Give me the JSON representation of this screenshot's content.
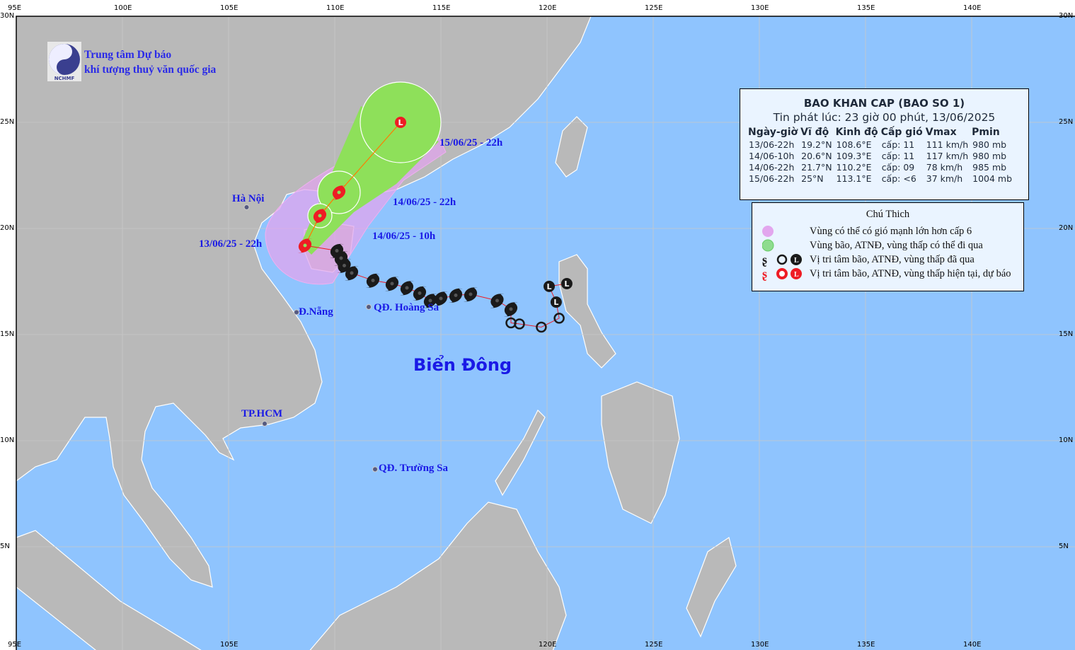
{
  "colors": {
    "sea": "#8fc4fe",
    "land": "#b9b9b9",
    "pink_zone": "#e2a6ee",
    "green_zone": "#8ee05a",
    "forecast": "#ee1c24",
    "past": "#1a1a1a",
    "label": "#1a1ae6"
  },
  "organization": {
    "line1": "Trung tâm Dự báo",
    "line2": "khí tượng thuỷ văn quốc gia",
    "logo_text": "NCHMF"
  },
  "axes": {
    "top_lon": [
      "95E",
      "100E",
      "105E",
      "110E",
      "115E",
      "120E",
      "125E",
      "130E",
      "135E",
      "140E"
    ],
    "bottom_lon": [
      "95E",
      "105E",
      "120E",
      "125E",
      "130E",
      "135E",
      "140E"
    ],
    "lat_left": [
      "30N",
      "25N",
      "20N",
      "15N",
      "10N",
      "5N"
    ],
    "lat_right": [
      "30N",
      "25N",
      "20N",
      "15N",
      "10N",
      "5N"
    ]
  },
  "places": {
    "hanoi": "Hà Nội",
    "danang": "Đ.Nẵng",
    "hoangsa": "QĐ. Hoàng Sa",
    "hcm": "TP.HCM",
    "truongsa": "QĐ. Trường Sa",
    "sea_name": "Biển Đông"
  },
  "time_labels": {
    "t0": "13/06/25 - 22h",
    "t1": "14/06/25 - 10h",
    "t2": "14/06/25 - 22h",
    "t3": "15/06/25 - 22h"
  },
  "bulletin": {
    "title": "BAO KHAN CAP (BAO SO 1)",
    "issued": "Tin phát lúc: 23 giờ 00 phút, 13/06/2025",
    "headers": [
      "Ngày-giờ",
      "Vĩ độ",
      "Kinh độ",
      "Cấp gió",
      "Vmax",
      "Pmin"
    ],
    "rows": [
      [
        "13/06-22h",
        "19.2°N",
        "108.6°E",
        "cấp: 11",
        "111 km/h",
        "980 mb"
      ],
      [
        "14/06-10h",
        "20.6°N",
        "109.3°E",
        "cấp: 11",
        "117 km/h",
        "980 mb"
      ],
      [
        "14/06-22h",
        "21.7°N",
        "110.2°E",
        "cấp: 09",
        "78 km/h",
        "985 mb"
      ],
      [
        "15/06-22h",
        "25°N",
        "113.1°E",
        "cấp: <6",
        "37 km/h",
        "1004 mb"
      ]
    ]
  },
  "legend": {
    "title": "Chú Thich",
    "items": [
      "Vùng có thể có gió mạnh lớn hơn cấp 6",
      "Vùng bão, ATNĐ, vùng thấp có thể đi qua",
      "Vị tri tâm bão, ATNĐ, vùng thấp đã qua",
      "Vị tri tâm bão, ATNĐ, vùng thấp hiện tại, dự báo"
    ]
  },
  "track": {
    "forecast": [
      {
        "lat": 19.2,
        "lon": 108.6,
        "type": "storm"
      },
      {
        "lat": 20.6,
        "lon": 109.3,
        "type": "storm"
      },
      {
        "lat": 21.7,
        "lon": 110.2,
        "type": "storm"
      },
      {
        "lat": 25.0,
        "lon": 113.1,
        "type": "low"
      }
    ],
    "past": [
      {
        "lat": 17.4,
        "lon": 120.93,
        "type": "low"
      },
      {
        "lat": 17.27,
        "lon": 120.1,
        "type": "low"
      },
      {
        "lat": 16.53,
        "lon": 120.43,
        "type": "low"
      },
      {
        "lat": 15.77,
        "lon": 120.57,
        "type": "depression"
      },
      {
        "lat": 15.35,
        "lon": 119.73,
        "type": "depression"
      },
      {
        "lat": 15.5,
        "lon": 118.7,
        "type": "depression"
      },
      {
        "lat": 15.55,
        "lon": 118.3,
        "type": "depression"
      },
      {
        "lat": 16.2,
        "lon": 118.3,
        "type": "storm"
      },
      {
        "lat": 16.6,
        "lon": 117.65,
        "type": "storm"
      },
      {
        "lat": 16.9,
        "lon": 116.4,
        "type": "storm"
      },
      {
        "lat": 16.85,
        "lon": 115.7,
        "type": "storm"
      },
      {
        "lat": 16.7,
        "lon": 115.0,
        "type": "storm"
      },
      {
        "lat": 16.6,
        "lon": 114.5,
        "type": "storm"
      },
      {
        "lat": 16.95,
        "lon": 114.0,
        "type": "storm"
      },
      {
        "lat": 17.2,
        "lon": 113.4,
        "type": "storm"
      },
      {
        "lat": 17.4,
        "lon": 112.7,
        "type": "storm"
      },
      {
        "lat": 17.55,
        "lon": 111.8,
        "type": "storm"
      },
      {
        "lat": 17.9,
        "lon": 110.8,
        "type": "storm"
      },
      {
        "lat": 18.25,
        "lon": 110.45,
        "type": "storm"
      },
      {
        "lat": 18.6,
        "lon": 110.3,
        "type": "storm"
      },
      {
        "lat": 18.95,
        "lon": 110.1,
        "type": "storm"
      }
    ]
  }
}
